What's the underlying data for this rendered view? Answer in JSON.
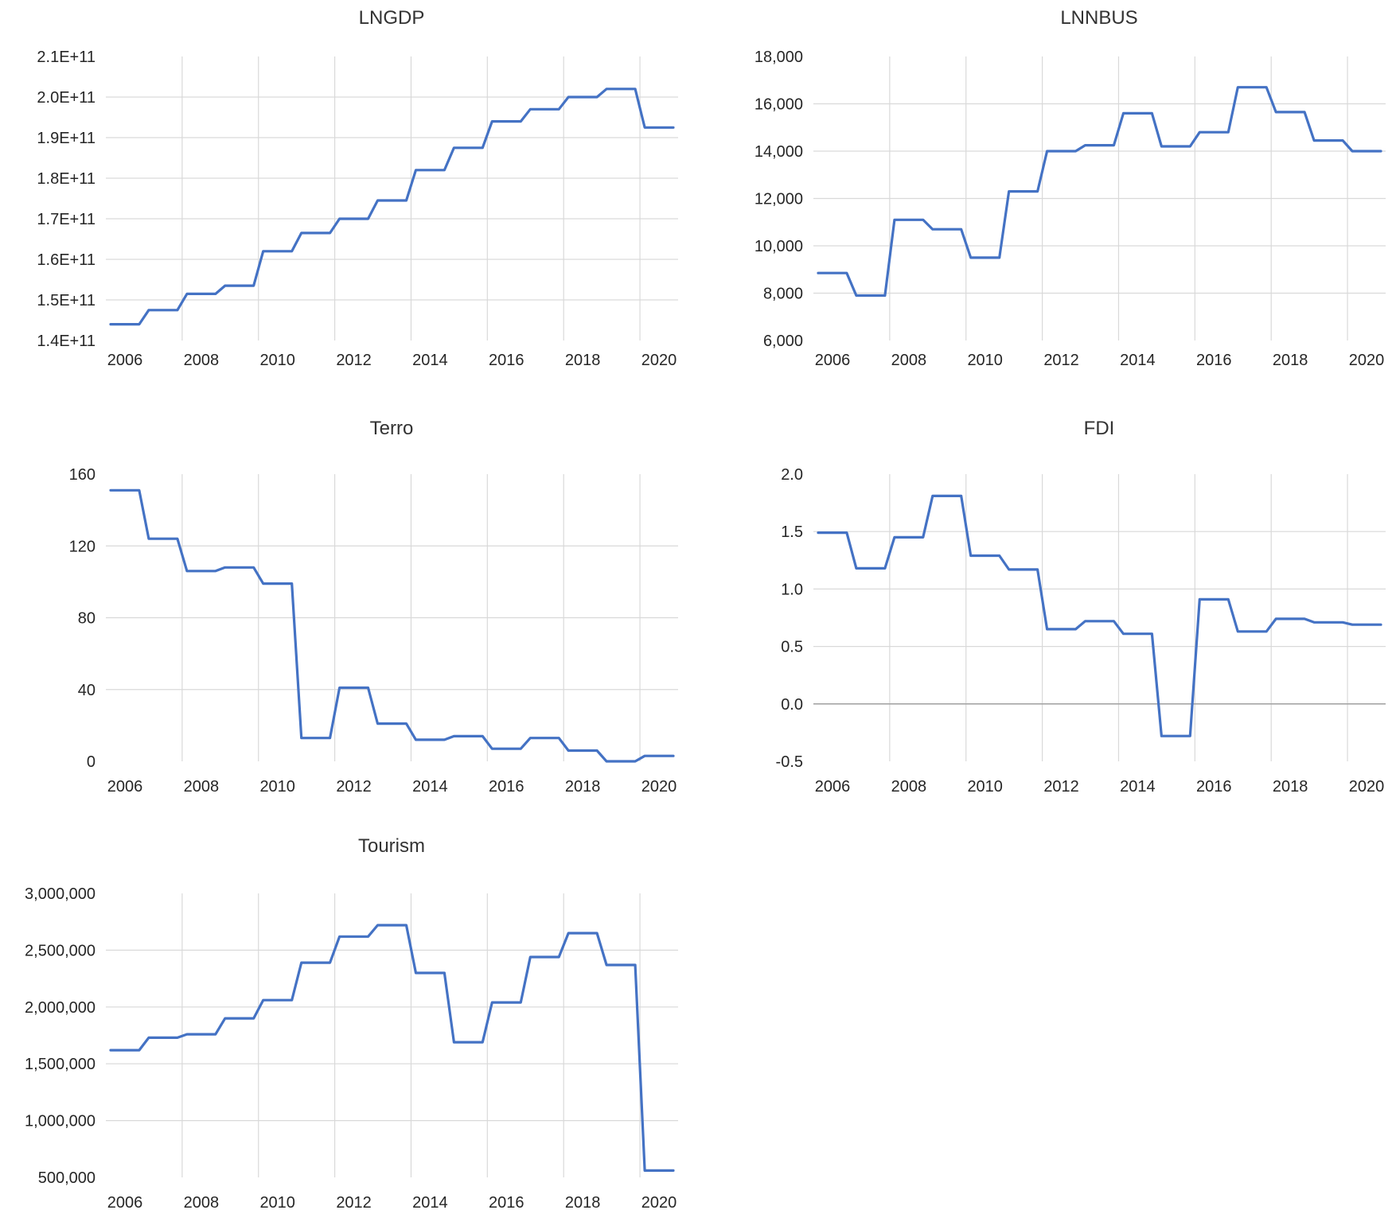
{
  "page": {
    "background_color": "#ffffff",
    "description": "Grid of five step line charts of quarterly series, 2006 to 2020"
  },
  "styles": {
    "line_color": "#4472C4",
    "gridline_color": "#D9D9D9",
    "zero_line_color": "#A6A6A6",
    "tick_label_color": "#262626",
    "title_color": "#333333"
  },
  "x_axis": {
    "start_year": 2006,
    "end_year": 2020,
    "frequency": "quarterly",
    "tick_labels": [
      "2006",
      "2008",
      "2010",
      "2012",
      "2014",
      "2016",
      "2018",
      "2020"
    ],
    "grid": true
  },
  "chart_data": [
    {
      "type": "line",
      "title": "LNGDP",
      "xlabel": "",
      "ylabel": "",
      "legend": "none",
      "grid": true,
      "years": [
        2006,
        2007,
        2008,
        2009,
        2010,
        2011,
        2012,
        2013,
        2014,
        2015,
        2016,
        2017,
        2018,
        2019,
        2020
      ],
      "values": [
        144000000000,
        147500000000,
        151500000000,
        153500000000,
        162000000000,
        166500000000,
        170000000000,
        174500000000,
        182000000000,
        187500000000,
        194000000000,
        197000000000,
        200000000000,
        202000000000,
        192500000000
      ],
      "ylim": [
        140000000000,
        210000000000
      ],
      "ytick_values": [
        140000000000,
        150000000000,
        160000000000,
        170000000000,
        180000000000,
        190000000000,
        200000000000,
        210000000000
      ],
      "ytick_labels": [
        "1.4E+11",
        "1.5E+11",
        "1.6E+11",
        "1.7E+11",
        "1.8E+11",
        "1.9E+11",
        "2.0E+11",
        "2.1E+11"
      ],
      "zero_line": false
    },
    {
      "type": "line",
      "title": "LNNBUS",
      "xlabel": "",
      "ylabel": "",
      "legend": "none",
      "grid": true,
      "years": [
        2006,
        2007,
        2008,
        2009,
        2010,
        2011,
        2012,
        2013,
        2014,
        2015,
        2016,
        2017,
        2018,
        2019,
        2020
      ],
      "values": [
        8850,
        7900,
        11100,
        10700,
        9500,
        12300,
        14000,
        14250,
        15600,
        14200,
        14800,
        16700,
        15650,
        14450,
        14000
      ],
      "ylim": [
        6000,
        18000
      ],
      "ytick_values": [
        6000,
        8000,
        10000,
        12000,
        14000,
        16000,
        18000
      ],
      "ytick_labels": [
        "6,000",
        "8,000",
        "10,000",
        "12,000",
        "14,000",
        "16,000",
        "18,000"
      ],
      "zero_line": false
    },
    {
      "type": "line",
      "title": "Terro",
      "xlabel": "",
      "ylabel": "",
      "legend": "none",
      "grid": true,
      "years": [
        2006,
        2007,
        2008,
        2009,
        2010,
        2011,
        2012,
        2013,
        2014,
        2015,
        2016,
        2017,
        2018,
        2019,
        2020
      ],
      "values": [
        151,
        124,
        106,
        108,
        99,
        13,
        41,
        21,
        12,
        14,
        7,
        13,
        6,
        0,
        3
      ],
      "ylim": [
        0,
        160
      ],
      "ytick_values": [
        0,
        40,
        80,
        120,
        160
      ],
      "ytick_labels": [
        "0",
        "40",
        "80",
        "120",
        "160"
      ],
      "zero_line": false
    },
    {
      "type": "line",
      "title": "FDI",
      "xlabel": "",
      "ylabel": "",
      "legend": "none",
      "grid": true,
      "years": [
        2006,
        2007,
        2008,
        2009,
        2010,
        2011,
        2012,
        2013,
        2014,
        2015,
        2016,
        2017,
        2018,
        2019,
        2020
      ],
      "values": [
        1.49,
        1.18,
        1.45,
        1.81,
        1.29,
        1.17,
        0.65,
        0.72,
        0.61,
        -0.28,
        0.91,
        0.63,
        0.74,
        0.71,
        0.69
      ],
      "ylim": [
        -0.5,
        2.0
      ],
      "ytick_values": [
        -0.5,
        0.0,
        0.5,
        1.0,
        1.5,
        2.0
      ],
      "ytick_labels": [
        "-0.5",
        "0.0",
        "0.5",
        "1.0",
        "1.5",
        "2.0"
      ],
      "zero_line": true
    },
    {
      "type": "line",
      "title": "Tourism",
      "xlabel": "",
      "ylabel": "",
      "legend": "none",
      "grid": true,
      "years": [
        2006,
        2007,
        2008,
        2009,
        2010,
        2011,
        2012,
        2013,
        2014,
        2015,
        2016,
        2017,
        2018,
        2019,
        2020
      ],
      "values": [
        1620000,
        1730000,
        1760000,
        1900000,
        2060000,
        2390000,
        2620000,
        2720000,
        2300000,
        1690000,
        2040000,
        2440000,
        2650000,
        2370000,
        560000
      ],
      "ylim": [
        500000,
        3000000
      ],
      "ytick_values": [
        500000,
        1000000,
        1500000,
        2000000,
        2500000,
        3000000
      ],
      "ytick_labels": [
        "500,000",
        "1,000,000",
        "1,500,000",
        "2,000,000",
        "2,500,000",
        "3,000,000"
      ],
      "zero_line": false
    }
  ]
}
